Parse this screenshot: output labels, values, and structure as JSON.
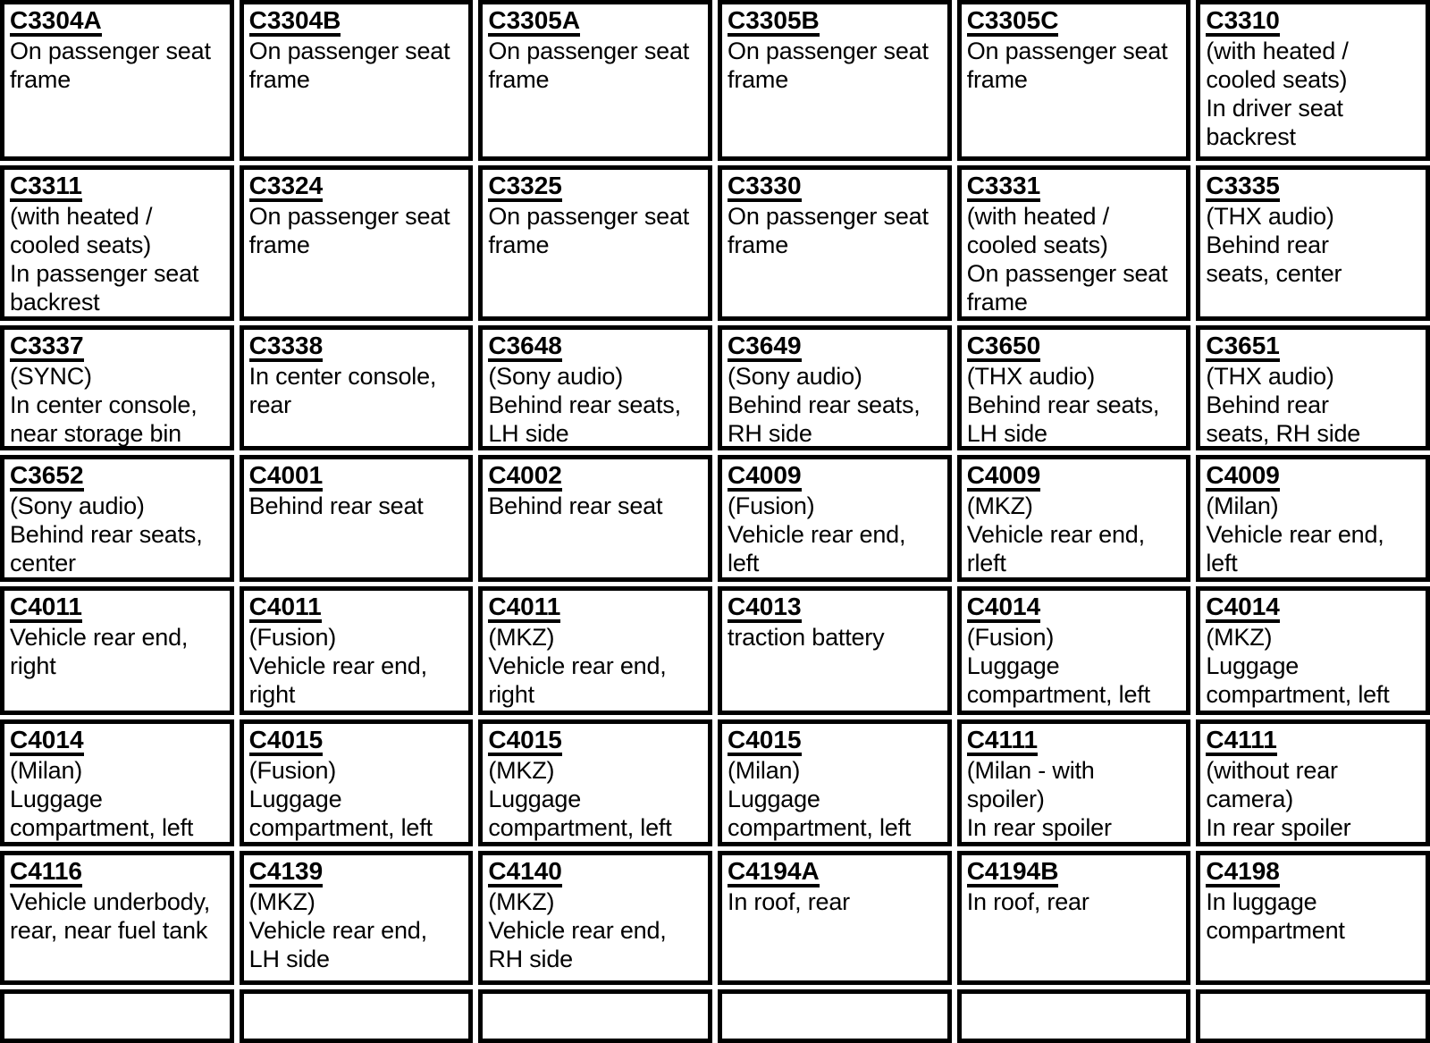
{
  "document": {
    "type": "connector-location-table",
    "text_color": "#000000",
    "border_color": "#000000",
    "background_color": "#ffffff"
  },
  "table": {
    "rows": [
      {
        "cells": [
          {
            "code": "C3304A",
            "lines": [
              "On passenger seat",
              "frame"
            ]
          },
          {
            "code": "C3304B",
            "lines": [
              "On passenger seat",
              "frame"
            ]
          },
          {
            "code": "C3305A",
            "lines": [
              "On passenger seat",
              "frame"
            ]
          },
          {
            "code": "C3305B",
            "lines": [
              "On passenger seat",
              "frame"
            ]
          },
          {
            "code": "C3305C",
            "lines": [
              "On passenger seat",
              "frame"
            ]
          },
          {
            "code": "C3310",
            "lines": [
              "(with heated /",
              "cooled seats)",
              "In driver seat",
              "backrest"
            ]
          }
        ]
      },
      {
        "cells": [
          {
            "code": "C3311",
            "lines": [
              "(with heated /",
              "cooled seats)",
              "In passenger seat",
              "backrest"
            ]
          },
          {
            "code": "C3324",
            "lines": [
              "On passenger seat",
              "frame"
            ]
          },
          {
            "code": "C3325",
            "lines": [
              "On passenger seat",
              "frame"
            ]
          },
          {
            "code": "C3330",
            "lines": [
              "On passenger seat",
              "frame"
            ]
          },
          {
            "code": "C3331",
            "lines": [
              "(with heated /",
              "cooled seats)",
              "On passenger seat",
              "frame"
            ]
          },
          {
            "code": "C3335",
            "lines": [
              "(THX audio)",
              "Behind rear",
              "seats, center"
            ]
          }
        ]
      },
      {
        "cells": [
          {
            "code": "C3337",
            "lines": [
              "(SYNC)",
              "In center console,",
              "near storage bin"
            ]
          },
          {
            "code": "C3338",
            "lines": [
              "In center console,",
              "rear"
            ]
          },
          {
            "code": "C3648",
            "lines": [
              "(Sony audio)",
              "Behind rear seats,",
              "LH side"
            ]
          },
          {
            "code": "C3649",
            "lines": [
              "(Sony audio)",
              "Behind rear seats,",
              "RH side"
            ]
          },
          {
            "code": "C3650",
            "lines": [
              "(THX audio)",
              "Behind rear seats,",
              "LH side"
            ]
          },
          {
            "code": "C3651",
            "lines": [
              "(THX audio)",
              "Behind rear",
              "seats, RH side"
            ]
          }
        ]
      },
      {
        "cells": [
          {
            "code": "C3652",
            "lines": [
              "(Sony audio)",
              "Behind rear seats,",
              "center"
            ]
          },
          {
            "code": "C4001",
            "lines": [
              "Behind rear seat"
            ]
          },
          {
            "code": "C4002",
            "lines": [
              "Behind rear seat"
            ]
          },
          {
            "code": "C4009",
            "lines": [
              "(Fusion)",
              "Vehicle rear end,",
              "left"
            ]
          },
          {
            "code": "C4009",
            "lines": [
              "(MKZ)",
              "Vehicle rear end,",
              "rleft"
            ]
          },
          {
            "code": "C4009",
            "lines": [
              "(Milan)",
              "Vehicle rear end,",
              "left"
            ]
          }
        ]
      },
      {
        "cells": [
          {
            "code": "C4011",
            "lines": [
              "Vehicle rear end,",
              "right"
            ]
          },
          {
            "code": "C4011",
            "lines": [
              "(Fusion)",
              "Vehicle rear end,",
              "right"
            ]
          },
          {
            "code": "C4011",
            "lines": [
              "(MKZ)",
              "Vehicle rear end,",
              "right"
            ]
          },
          {
            "code": "C4013",
            "lines": [
              "traction battery"
            ]
          },
          {
            "code": "C4014",
            "lines": [
              "(Fusion)",
              "Luggage",
              "compartment, left"
            ]
          },
          {
            "code": "C4014",
            "lines": [
              "(MKZ)",
              "Luggage",
              "compartment, left"
            ]
          }
        ]
      },
      {
        "cells": [
          {
            "code": "C4014",
            "lines": [
              "(Milan)",
              "Luggage",
              "compartment, left"
            ]
          },
          {
            "code": "C4015",
            "lines": [
              "(Fusion)",
              "Luggage",
              "compartment, left"
            ]
          },
          {
            "code": "C4015",
            "lines": [
              "(MKZ)",
              "Luggage",
              "compartment, left"
            ]
          },
          {
            "code": "C4015",
            "lines": [
              "(Milan)",
              "Luggage",
              "compartment, left"
            ]
          },
          {
            "code": "C4111",
            "lines": [
              "(Milan - with",
              "spoiler)",
              "In rear spoiler"
            ]
          },
          {
            "code": "C4111",
            "lines": [
              "(without rear",
              "camera)",
              "In rear spoiler"
            ]
          }
        ]
      },
      {
        "cells": [
          {
            "code": "C4116",
            "lines": [
              "Vehicle underbody,",
              "rear, near fuel tank"
            ]
          },
          {
            "code": "C4139",
            "lines": [
              "(MKZ)",
              "Vehicle rear end,",
              "LH side"
            ]
          },
          {
            "code": "C4140",
            "lines": [
              "(MKZ)",
              "Vehicle rear end,",
              "RH side"
            ]
          },
          {
            "code": "C4194A",
            "lines": [
              "In roof, rear"
            ]
          },
          {
            "code": "C4194B",
            "lines": [
              "In roof, rear"
            ]
          },
          {
            "code": "C4198",
            "lines": [
              "In luggage",
              "compartment"
            ]
          }
        ]
      },
      {
        "cells": [
          {},
          {},
          {},
          {},
          {},
          {}
        ]
      }
    ]
  }
}
